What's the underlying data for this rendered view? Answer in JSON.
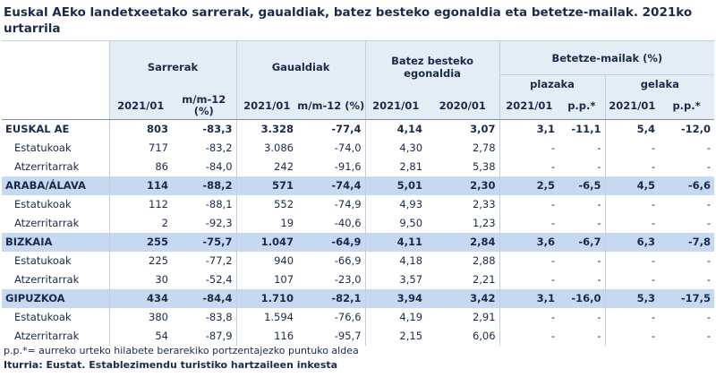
{
  "title": "Euskal AEko landetxeetako sarrerak, gaualdiak, batez besteko egonaldia eta betetze-mailak. 2021ko urtarrila",
  "headers": {
    "sarrerak": "Sarrerak",
    "gaualdiak": "Gaualdiak",
    "egonaldia": "Batez besteko egonaldia",
    "betetze": "Betetze-mailak (%)",
    "plazaka": "plazaka",
    "gelaka": "gelaka",
    "cols": [
      "2021/01",
      "m/m-12 (%)",
      "2021/01",
      "m/m-12 (%)",
      "2021/01",
      "2020/01",
      "2021/01",
      "p.p.*",
      "2021/01",
      "p.p.*"
    ]
  },
  "rows": [
    {
      "label": "EUSKAL AE",
      "kind": "total",
      "cells": [
        "803",
        "-83,3",
        "3.328",
        "-77,4",
        "4,14",
        "3,07",
        "3,1",
        "-11,1",
        "5,4",
        "-12,0"
      ]
    },
    {
      "label": "Estatukoak",
      "kind": "sub",
      "cells": [
        "717",
        "-83,2",
        "3.086",
        "-74,0",
        "4,30",
        "2,78",
        "-",
        "-",
        "-",
        "-"
      ]
    },
    {
      "label": "Atzerritarrak",
      "kind": "sub",
      "cells": [
        "86",
        "-84,0",
        "242",
        "-91,6",
        "2,81",
        "5,38",
        "-",
        "-",
        "-",
        "-"
      ]
    },
    {
      "label": "ARABA/ÁLAVA",
      "kind": "region",
      "cells": [
        "114",
        "-88,2",
        "571",
        "-74,4",
        "5,01",
        "2,30",
        "2,5",
        "-6,5",
        "4,5",
        "-6,6"
      ]
    },
    {
      "label": "Estatukoak",
      "kind": "sub",
      "cells": [
        "112",
        "-88,1",
        "552",
        "-74,9",
        "4,93",
        "2,33",
        "-",
        "-",
        "-",
        "-"
      ]
    },
    {
      "label": "Atzerritarrak",
      "kind": "sub",
      "cells": [
        "2",
        "-92,3",
        "19",
        "-40,6",
        "9,50",
        "1,23",
        "-",
        "-",
        "-",
        "-"
      ]
    },
    {
      "label": "BIZKAIA",
      "kind": "region",
      "cells": [
        "255",
        "-75,7",
        "1.047",
        "-64,9",
        "4,11",
        "2,84",
        "3,6",
        "-6,7",
        "6,3",
        "-7,8"
      ]
    },
    {
      "label": "Estatukoak",
      "kind": "sub",
      "cells": [
        "225",
        "-77,2",
        "940",
        "-66,9",
        "4,18",
        "2,88",
        "-",
        "-",
        "-",
        "-"
      ]
    },
    {
      "label": "Atzerritarrak",
      "kind": "sub",
      "cells": [
        "30",
        "-52,4",
        "107",
        "-23,0",
        "3,57",
        "2,21",
        "-",
        "-",
        "-",
        "-"
      ]
    },
    {
      "label": "GIPUZKOA",
      "kind": "region",
      "cells": [
        "434",
        "-84,4",
        "1.710",
        "-82,1",
        "3,94",
        "3,42",
        "3,1",
        "-16,0",
        "5,3",
        "-17,5"
      ]
    },
    {
      "label": "Estatukoak",
      "kind": "sub",
      "cells": [
        "380",
        "-83,8",
        "1.594",
        "-76,6",
        "4,19",
        "2,91",
        "-",
        "-",
        "-",
        "-"
      ]
    },
    {
      "label": "Atzerritarrak",
      "kind": "sub",
      "cells": [
        "54",
        "-87,9",
        "116",
        "-95,7",
        "2,15",
        "6,06",
        "-",
        "-",
        "-",
        "-"
      ]
    }
  ],
  "footnote": "p.p.*= aurreko urteko hilabete berarekiko portzentajezko puntuko aldea",
  "source": "Iturria: Eustat. Establezimendu turistiko hartzaileen inkesta"
}
